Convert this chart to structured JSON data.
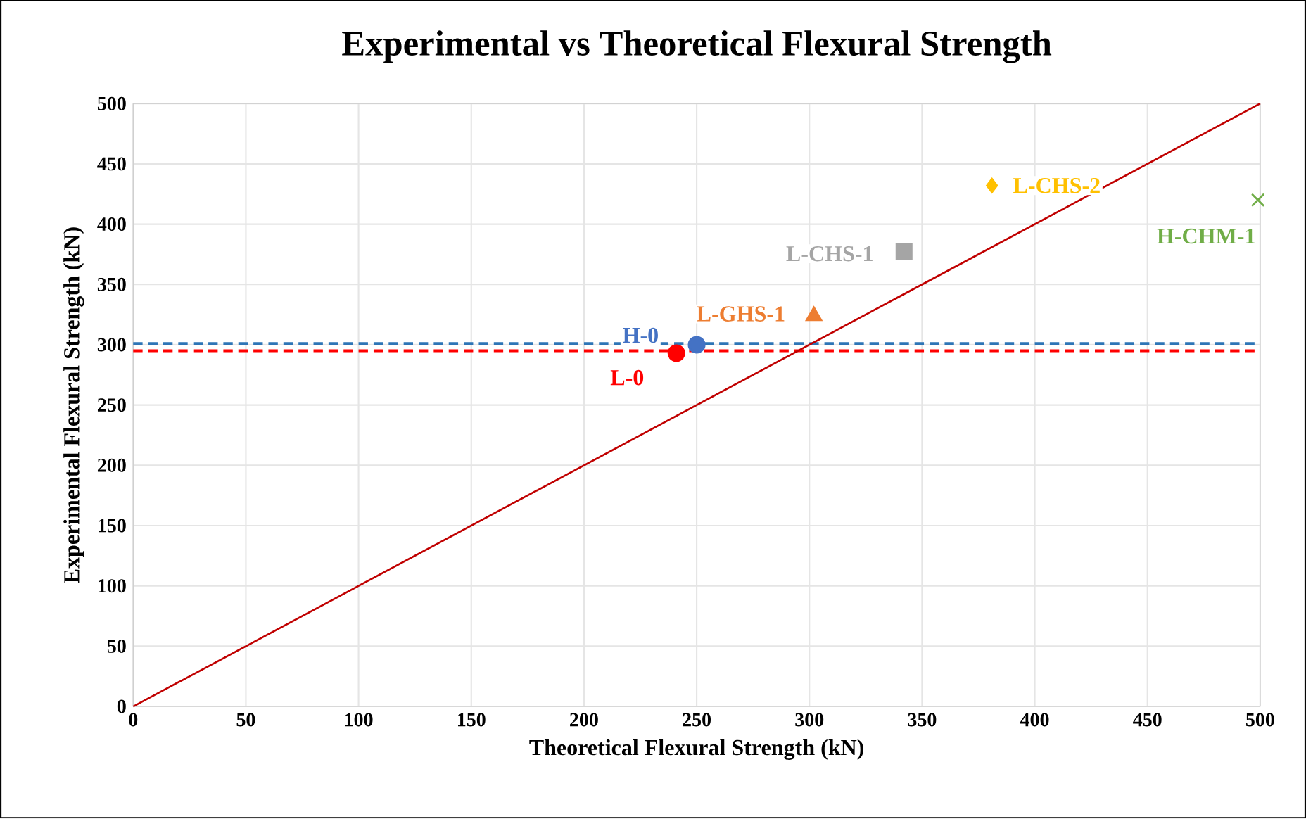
{
  "chart_data": {
    "type": "scatter",
    "title": "Experimental vs Theoretical Flexural Strength",
    "xlabel": "Theoretical Flexural Strength (kN)",
    "ylabel": "Experimental Flexural Strength (kN)",
    "xlim": [
      0,
      500
    ],
    "ylim": [
      0,
      500
    ],
    "xticks": [
      0,
      50,
      100,
      150,
      200,
      250,
      300,
      350,
      400,
      450,
      500
    ],
    "yticks": [
      0,
      50,
      100,
      150,
      200,
      250,
      300,
      350,
      400,
      450,
      500
    ],
    "grid": true,
    "series": [
      {
        "type": "line",
        "color": "#c00000",
        "x": [
          0,
          500
        ],
        "values": [
          0,
          500
        ],
        "marker": "none",
        "line_style": "solid"
      },
      {
        "name": "L-0",
        "color": "#ff0000",
        "x": [
          241
        ],
        "values": [
          293
        ],
        "marker": "circle"
      },
      {
        "name": "H-0",
        "color": "#4472c4",
        "x": [
          250
        ],
        "values": [
          300
        ],
        "marker": "circle"
      },
      {
        "name": "L-GHS-1",
        "color": "#ed7d31",
        "x": [
          302
        ],
        "values": [
          324
        ],
        "marker": "triangle"
      },
      {
        "name": "L-CHS-1",
        "color": "#a5a5a5",
        "x": [
          342
        ],
        "values": [
          377
        ],
        "marker": "square"
      },
      {
        "name": "L-CHS-2",
        "color": "#ffc000",
        "x": [
          381
        ],
        "values": [
          432
        ],
        "marker": "diamond"
      },
      {
        "name": "H-CHM-1",
        "color": "#70ad47",
        "x": [
          499
        ],
        "values": [
          420
        ],
        "marker": "cross"
      }
    ],
    "ref_lines": [
      {
        "axis": "y",
        "value": 301,
        "color": "#2e75b6",
        "line_style": "dashed"
      },
      {
        "axis": "y",
        "value": 295,
        "color": "#ff0000",
        "line_style": "dashed"
      }
    ]
  }
}
